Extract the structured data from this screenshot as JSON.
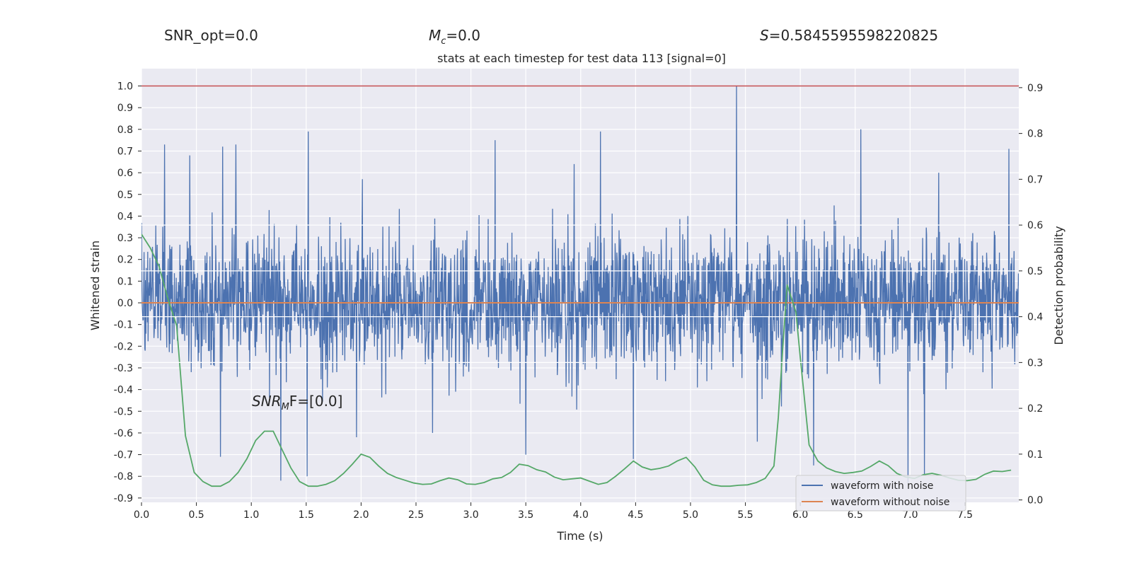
{
  "stats": {
    "snr_opt": "SNR_opt=0.0",
    "mc_symbol": "M",
    "mc_sub": "c",
    "mc_value": "=0.0",
    "s_symbol": "S",
    "s_value": "=0.5845595598220825",
    "snr_mf_symbol": "SNR",
    "snr_mf_sub": "M",
    "snr_mf_value": "F=[0.0]"
  },
  "chart_data": {
    "type": "line",
    "title": "stats at each timestep for test data 113 [signal=0]",
    "xlabel": "Time (s)",
    "ylabel": "Whitened strain",
    "y2label": "Detection probability",
    "xlim": [
      0.0,
      7.99
    ],
    "ylim": [
      -0.92,
      1.08
    ],
    "y2lim": [
      -0.0052,
      0.9415
    ],
    "x_ticks": [
      "0.0",
      "0.5",
      "1.0",
      "1.5",
      "2.0",
      "2.5",
      "3.0",
      "3.5",
      "4.0",
      "4.5",
      "5.0",
      "5.5",
      "6.0",
      "6.5",
      "7.0",
      "7.5"
    ],
    "y_ticks": [
      "1.0",
      "0.9",
      "0.8",
      "0.7",
      "0.6",
      "0.5",
      "0.4",
      "0.3",
      "0.2",
      "0.1",
      "0.0",
      "-0.1",
      "-0.2",
      "-0.3",
      "-0.4",
      "-0.5",
      "-0.6",
      "-0.7",
      "-0.8",
      "-0.9"
    ],
    "y2_ticks": [
      "0.9",
      "0.8",
      "0.7",
      "0.6",
      "0.5",
      "0.4",
      "0.3",
      "0.2",
      "0.1",
      "0.0"
    ],
    "threshold": 1.0,
    "grid": true,
    "legend_position": "lower-right",
    "series": [
      {
        "name": "waveform with noise",
        "color": "#4c72b0",
        "kind": "noise",
        "duration": 7.99,
        "typical_max": 0.4,
        "typical_min": -0.45,
        "peaks": [
          {
            "t": 0.21,
            "v": 0.73
          },
          {
            "t": 0.44,
            "v": 0.68
          },
          {
            "t": 0.74,
            "v": 0.72
          },
          {
            "t": 0.86,
            "v": 0.73
          },
          {
            "t": 1.52,
            "v": 0.79
          },
          {
            "t": 2.01,
            "v": 0.57
          },
          {
            "t": 3.22,
            "v": 0.75
          },
          {
            "t": 3.94,
            "v": 0.64
          },
          {
            "t": 4.18,
            "v": 0.79
          },
          {
            "t": 5.42,
            "v": 1.0
          },
          {
            "t": 6.55,
            "v": 0.8
          },
          {
            "t": 7.26,
            "v": 0.6
          },
          {
            "t": 7.9,
            "v": 0.71
          },
          {
            "t": 1.27,
            "v": -0.82
          },
          {
            "t": 1.51,
            "v": -0.8
          },
          {
            "t": 0.72,
            "v": -0.71
          },
          {
            "t": 1.96,
            "v": -0.62
          },
          {
            "t": 2.65,
            "v": -0.6
          },
          {
            "t": 3.5,
            "v": -0.7
          },
          {
            "t": 4.48,
            "v": -0.72
          },
          {
            "t": 5.61,
            "v": -0.64
          },
          {
            "t": 6.12,
            "v": -0.75
          },
          {
            "t": 6.98,
            "v": -0.83
          },
          {
            "t": 7.13,
            "v": -0.79
          }
        ]
      },
      {
        "name": "waveform without noise",
        "color": "#dd8452",
        "x": [
          0.0,
          7.99
        ],
        "values": [
          0.0,
          0.0
        ]
      },
      {
        "name": "",
        "color": "#55a868",
        "axis": "right",
        "x": [
          0.0,
          0.08,
          0.16,
          0.24,
          0.32,
          0.4,
          0.48,
          0.56,
          0.64,
          0.72,
          0.8,
          0.88,
          0.96,
          1.04,
          1.12,
          1.2,
          1.28,
          1.36,
          1.44,
          1.52,
          1.6,
          1.68,
          1.76,
          1.84,
          1.92,
          2.0,
          2.08,
          2.16,
          2.24,
          2.32,
          2.4,
          2.48,
          2.56,
          2.64,
          2.72,
          2.8,
          2.88,
          2.96,
          3.04,
          3.12,
          3.2,
          3.28,
          3.36,
          3.44,
          3.52,
          3.6,
          3.68,
          3.76,
          3.84,
          3.92,
          4.0,
          4.08,
          4.16,
          4.24,
          4.32,
          4.4,
          4.48,
          4.56,
          4.64,
          4.72,
          4.8,
          4.88,
          4.96,
          5.04,
          5.12,
          5.2,
          5.28,
          5.36,
          5.44,
          5.52,
          5.6,
          5.68,
          5.76,
          5.8,
          5.84,
          5.88,
          5.96,
          6.0,
          6.08,
          6.16,
          6.24,
          6.32,
          6.4,
          6.48,
          6.56,
          6.64,
          6.72,
          6.8,
          6.88,
          6.96,
          7.04,
          7.12,
          7.2,
          7.28,
          7.36,
          7.44,
          7.52,
          7.6,
          7.68,
          7.76,
          7.84,
          7.92
        ],
        "values": [
          0.58,
          0.55,
          0.51,
          0.44,
          0.38,
          0.14,
          0.06,
          0.04,
          0.03,
          0.03,
          0.04,
          0.06,
          0.09,
          0.13,
          0.15,
          0.15,
          0.11,
          0.07,
          0.04,
          0.03,
          0.03,
          0.034,
          0.042,
          0.058,
          0.078,
          0.1,
          0.093,
          0.074,
          0.058,
          0.049,
          0.043,
          0.037,
          0.034,
          0.035,
          0.042,
          0.048,
          0.044,
          0.035,
          0.034,
          0.038,
          0.046,
          0.049,
          0.06,
          0.078,
          0.075,
          0.066,
          0.061,
          0.05,
          0.044,
          0.046,
          0.048,
          0.041,
          0.034,
          0.038,
          0.052,
          0.068,
          0.085,
          0.072,
          0.066,
          0.069,
          0.074,
          0.085,
          0.093,
          0.072,
          0.043,
          0.033,
          0.03,
          0.03,
          0.032,
          0.033,
          0.038,
          0.047,
          0.074,
          0.18,
          0.33,
          0.47,
          0.41,
          0.31,
          0.12,
          0.085,
          0.07,
          0.062,
          0.058,
          0.06,
          0.063,
          0.073,
          0.085,
          0.075,
          0.058,
          0.05,
          0.047,
          0.055,
          0.058,
          0.054,
          0.048,
          0.043,
          0.042,
          0.045,
          0.056,
          0.063,
          0.062,
          0.065
        ]
      }
    ]
  }
}
